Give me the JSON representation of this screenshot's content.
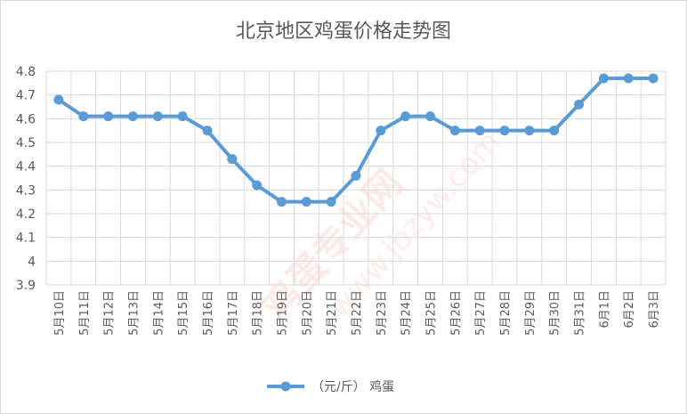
{
  "chart_data": {
    "type": "line",
    "title": "北京地区鸡蛋价格走势图",
    "categories": [
      "5月10日",
      "5月11日",
      "5月12日",
      "5月13日",
      "5月14日",
      "5月15日",
      "5月16日",
      "5月17日",
      "5月18日",
      "5月19日",
      "5月20日",
      "5月21日",
      "5月22日",
      "5月23日",
      "5月24日",
      "5月25日",
      "5月26日",
      "5月27日",
      "5月28日",
      "5月29日",
      "5月30日",
      "5月31日",
      "6月1日",
      "6月2日",
      "6月3日"
    ],
    "series": [
      {
        "name": "（元/斤） 鸡蛋",
        "color": "#5b9bd5",
        "values": [
          4.68,
          4.61,
          4.61,
          4.61,
          4.61,
          4.61,
          4.55,
          4.43,
          4.32,
          4.25,
          4.25,
          4.25,
          4.36,
          4.55,
          4.61,
          4.61,
          4.55,
          4.55,
          4.55,
          4.55,
          4.55,
          4.66,
          4.77,
          4.77,
          4.77
        ]
      }
    ],
    "ylim": [
      3.9,
      4.8
    ],
    "yticks": [
      "3.9",
      "4",
      "4.1",
      "4.2",
      "4.3",
      "4.4",
      "4.5",
      "4.6",
      "4.7",
      "4.8"
    ],
    "xlabel": "",
    "ylabel": "",
    "grid": true,
    "legend": "bottom"
  },
  "watermark": {
    "text1": "鸡蛋专业网",
    "text2": "www.jbzyw.com"
  }
}
